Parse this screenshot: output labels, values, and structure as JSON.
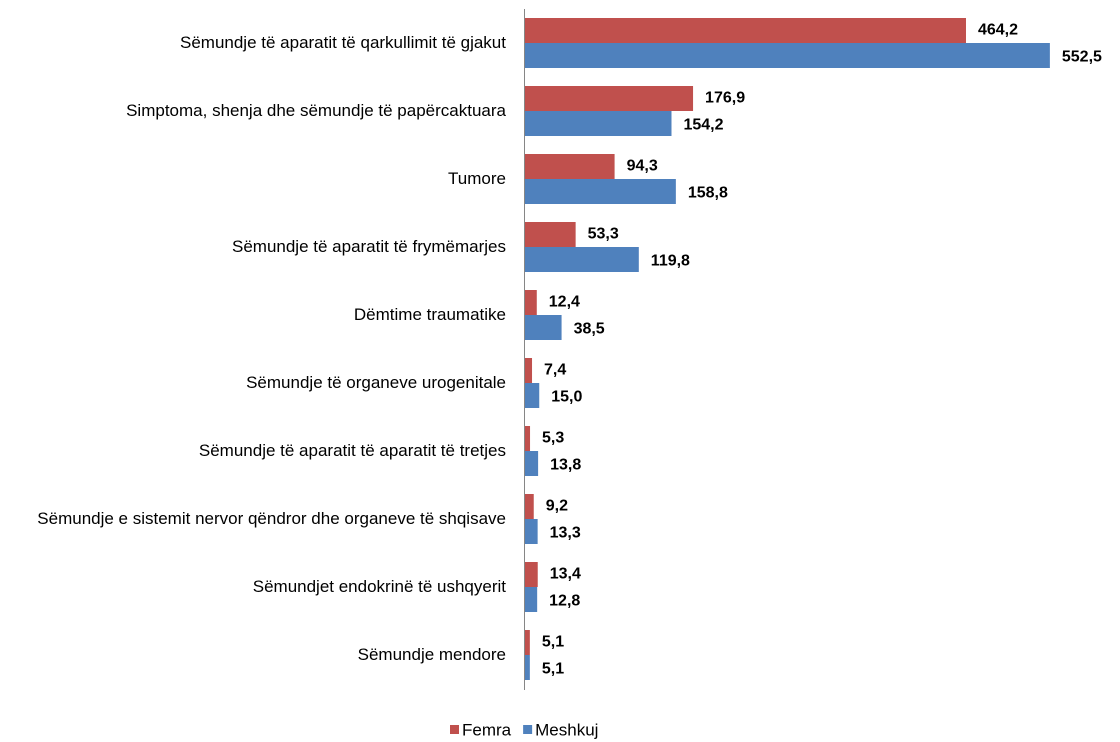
{
  "chart_data": {
    "type": "hbar",
    "categories": [
      "Sëmundje të aparatit të qarkullimit të gjakut",
      "Simptoma, shenja dhe sëmundje të papërcaktuara",
      "Tumore",
      "Sëmundje të aparatit të frymëmarjes",
      "Dëmtime traumatike",
      "Sëmundje të organeve urogenitale",
      "Sëmundje të aparatit të aparatit të tretjes",
      "Sëmundje e sistemit nervor qëndror dhe organeve të shqisave",
      "Sëmundjet endokrinë të ushqyerit",
      "Sëmundje mendore"
    ],
    "series": [
      {
        "name": "Femra",
        "color": "#c0504d",
        "values": [
          464.2,
          176.9,
          94.3,
          53.3,
          12.4,
          7.4,
          5.3,
          9.2,
          13.4,
          5.1
        ],
        "value_labels": [
          "464,2",
          "176,9",
          "94,3",
          "53,3",
          "12,4",
          "7,4",
          "5,3",
          "9,2",
          "13,4",
          "5,1"
        ]
      },
      {
        "name": "Meshkuj",
        "color": "#4f81bd",
        "values": [
          552.5,
          154.2,
          158.8,
          119.8,
          38.5,
          15.0,
          13.8,
          13.3,
          12.8,
          5.1
        ],
        "value_labels": [
          "552,5",
          "154,2",
          "158,8",
          "119,8",
          "38,5",
          "15,0",
          "13,8",
          "13,3",
          "12,8",
          "5,1"
        ]
      }
    ],
    "xlim": [
      0,
      600
    ],
    "legend": "bottom"
  }
}
